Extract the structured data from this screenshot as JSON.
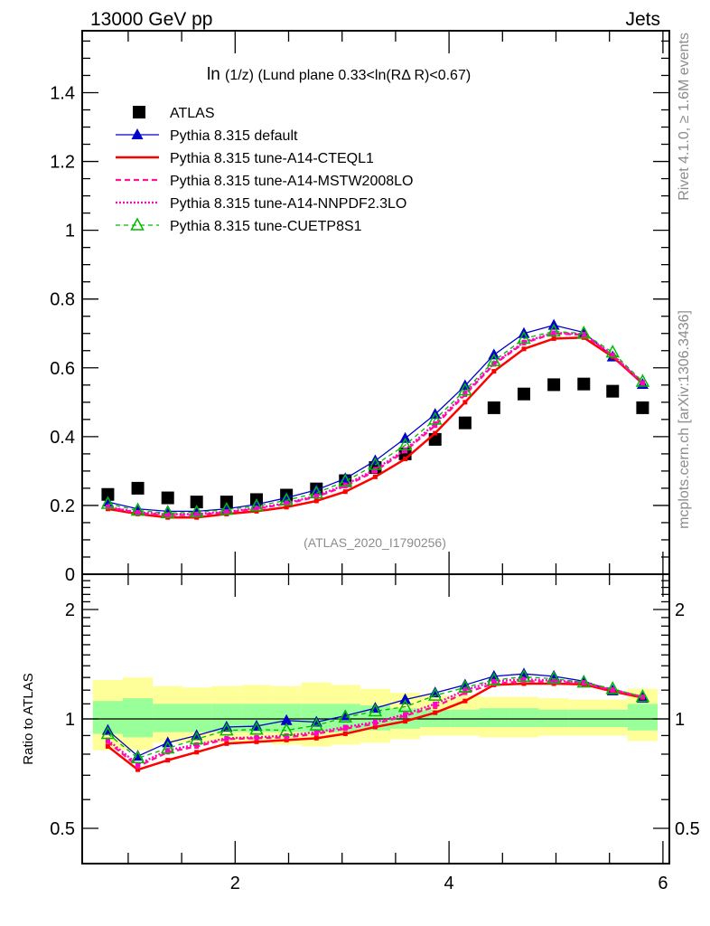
{
  "chart_data": [
    {
      "type": "line",
      "panel": "main",
      "title": "ln(1/z) (Lund plane 0.33<ln(RΔ R)<0.67)",
      "title_main": "ln",
      "title_rest": "(1/z) (Lund plane 0.33<ln(RΔ R)<0.67)",
      "header_left": "13000 GeV pp",
      "header_right": "Jets",
      "analysis_label": "(ATLAS_2020_I1790256)",
      "side_label_top": "Rivet 4.1.0, ≥ 1.6M events",
      "side_label_bottom": "mcplots.cern.ch [arXiv:1306.3436]",
      "xlabel": "",
      "ylabel": "",
      "xlim": [
        0.57,
        6.06
      ],
      "ylim": [
        0,
        1.58
      ],
      "yticks": [
        0,
        0.2,
        0.4,
        0.6,
        0.8,
        1,
        1.2,
        1.4
      ],
      "ytick_labels": [
        "0",
        "0.2",
        "0.4",
        "0.6",
        "0.8",
        "1",
        "1.2",
        "1.4"
      ],
      "legend_position": "top-left",
      "x": [
        0.81,
        1.09,
        1.37,
        1.64,
        1.92,
        2.2,
        2.48,
        2.76,
        3.03,
        3.31,
        3.59,
        3.87,
        4.15,
        4.42,
        4.7,
        4.98,
        5.26,
        5.53,
        5.81
      ],
      "series": [
        {
          "name": "ATLAS",
          "style": "data",
          "color": "#000000",
          "values": [
            0.232,
            0.25,
            0.222,
            0.21,
            0.21,
            0.217,
            0.23,
            0.248,
            0.272,
            0.31,
            0.35,
            0.392,
            0.44,
            0.484,
            0.524,
            0.551,
            0.553,
            0.532,
            0.484
          ]
        },
        {
          "name": "Pythia 8.315 default",
          "style": "solid-triangle",
          "color": "#0000cc",
          "values": [
            0.21,
            0.19,
            0.183,
            0.183,
            0.19,
            0.203,
            0.222,
            0.245,
            0.278,
            0.33,
            0.395,
            0.465,
            0.548,
            0.638,
            0.7,
            0.724,
            0.703,
            0.632,
            0.552
          ]
        },
        {
          "name": "Pythia 8.315 tune-A14-CTEQL1",
          "style": "solid-thick",
          "color": "#ff0000",
          "values": [
            0.19,
            0.175,
            0.165,
            0.165,
            0.175,
            0.183,
            0.195,
            0.213,
            0.24,
            0.283,
            0.335,
            0.41,
            0.5,
            0.59,
            0.655,
            0.685,
            0.688,
            0.632,
            0.555
          ]
        },
        {
          "name": "Pythia 8.315 tune-A14-MSTW2008LO",
          "style": "dashed",
          "color": "#ff1493",
          "values": [
            0.195,
            0.178,
            0.172,
            0.172,
            0.18,
            0.19,
            0.205,
            0.225,
            0.256,
            0.3,
            0.358,
            0.432,
            0.522,
            0.61,
            0.672,
            0.7,
            0.696,
            0.636,
            0.556
          ]
        },
        {
          "name": "Pythia 8.315 tune-A14-NNPDF2.3LO",
          "style": "dotted",
          "color": "#ff00cc",
          "values": [
            0.196,
            0.18,
            0.174,
            0.175,
            0.182,
            0.192,
            0.207,
            0.228,
            0.26,
            0.305,
            0.362,
            0.438,
            0.527,
            0.613,
            0.675,
            0.702,
            0.698,
            0.638,
            0.557
          ]
        },
        {
          "name": "Pythia 8.315 tune-CUETP8S1",
          "style": "dashed-open-triangle",
          "color": "#00bb00",
          "values": [
            0.205,
            0.185,
            0.178,
            0.18,
            0.188,
            0.198,
            0.215,
            0.236,
            0.27,
            0.318,
            0.375,
            0.45,
            0.535,
            0.62,
            0.685,
            0.706,
            0.7,
            0.645,
            0.56
          ]
        }
      ]
    },
    {
      "type": "line",
      "panel": "ratio",
      "ylabel": "Ratio to ATLAS",
      "xlabel": "",
      "yscale": "log",
      "xlim": [
        0.57,
        6.06
      ],
      "ylim": [
        0.4,
        2.5
      ],
      "yticks": [
        0.5,
        1,
        2
      ],
      "ytick_labels": [
        "0.5",
        "1",
        "2"
      ],
      "xticks": [
        2,
        4,
        6
      ],
      "xtick_labels": [
        "2",
        "4",
        "6"
      ],
      "x": [
        0.81,
        1.09,
        1.37,
        1.64,
        1.92,
        2.2,
        2.48,
        2.76,
        3.03,
        3.31,
        3.59,
        3.87,
        4.15,
        4.42,
        4.7,
        4.98,
        5.26,
        5.53,
        5.81
      ],
      "bands": {
        "inner_color": "#99ff99",
        "outer_color": "#ffff99",
        "inner_lo": [
          0.91,
          0.89,
          0.92,
          0.92,
          0.92,
          0.92,
          0.92,
          0.92,
          0.92,
          0.93,
          0.94,
          0.95,
          0.95,
          0.95,
          0.95,
          0.95,
          0.95,
          0.95,
          0.93
        ],
        "inner_hi": [
          1.12,
          1.14,
          1.1,
          1.1,
          1.1,
          1.1,
          1.1,
          1.1,
          1.1,
          1.09,
          1.07,
          1.06,
          1.06,
          1.07,
          1.07,
          1.06,
          1.06,
          1.06,
          1.1
        ],
        "outer_lo": [
          0.82,
          0.82,
          0.86,
          0.86,
          0.86,
          0.86,
          0.85,
          0.84,
          0.85,
          0.86,
          0.88,
          0.9,
          0.9,
          0.89,
          0.89,
          0.9,
          0.9,
          0.9,
          0.87
        ],
        "outer_hi": [
          1.28,
          1.3,
          1.23,
          1.22,
          1.23,
          1.24,
          1.23,
          1.26,
          1.24,
          1.21,
          1.18,
          1.16,
          1.16,
          1.15,
          1.15,
          1.14,
          1.13,
          1.13,
          1.21
        ]
      },
      "series": [
        {
          "name": "Pythia 8.315 default",
          "style": "solid-triangle",
          "color": "#0000cc",
          "values": [
            0.93,
            0.79,
            0.86,
            0.9,
            0.95,
            0.955,
            0.99,
            0.98,
            1.02,
            1.07,
            1.13,
            1.18,
            1.24,
            1.31,
            1.33,
            1.31,
            1.27,
            1.195,
            1.14
          ]
        },
        {
          "name": "Pythia 8.315 tune-A14-CTEQL1",
          "style": "solid-thick",
          "color": "#ff0000",
          "values": [
            0.84,
            0.725,
            0.77,
            0.81,
            0.855,
            0.865,
            0.875,
            0.885,
            0.91,
            0.95,
            0.985,
            1.04,
            1.12,
            1.24,
            1.25,
            1.25,
            1.245,
            1.19,
            1.145
          ]
        },
        {
          "name": "Pythia 8.315 tune-A14-MSTW2008LO",
          "style": "dashed",
          "color": "#ff1493",
          "values": [
            0.865,
            0.74,
            0.81,
            0.84,
            0.88,
            0.885,
            0.89,
            0.91,
            0.94,
            0.97,
            1.02,
            1.08,
            1.18,
            1.25,
            1.27,
            1.265,
            1.255,
            1.2,
            1.15
          ]
        },
        {
          "name": "Pythia 8.315 tune-A14-NNPDF2.3LO",
          "style": "dotted",
          "color": "#ff00cc",
          "values": [
            0.875,
            0.75,
            0.82,
            0.85,
            0.885,
            0.89,
            0.9,
            0.92,
            0.95,
            0.98,
            1.03,
            1.1,
            1.2,
            1.27,
            1.285,
            1.275,
            1.26,
            1.205,
            1.15
          ]
        },
        {
          "name": "Pythia 8.315 tune-CUETP8S1",
          "style": "dashed-open-triangle",
          "color": "#00bb00",
          "values": [
            0.91,
            0.78,
            0.83,
            0.88,
            0.93,
            0.935,
            0.93,
            0.96,
            1.01,
            1.05,
            1.08,
            1.16,
            1.22,
            1.28,
            1.305,
            1.29,
            1.26,
            1.21,
            1.15
          ]
        }
      ]
    }
  ]
}
